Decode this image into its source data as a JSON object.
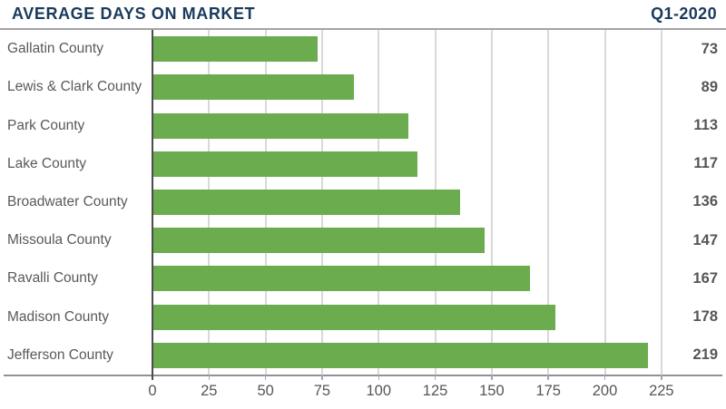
{
  "header": {
    "title": "AVERAGE DAYS ON MARKET",
    "period": "Q1-2020"
  },
  "chart_data": {
    "type": "bar",
    "orientation": "horizontal",
    "title": "AVERAGE DAYS ON MARKET",
    "period": "Q1-2020",
    "categories": [
      "Gallatin County",
      "Lewis & Clark County",
      "Park County",
      "Lake County",
      "Broadwater County",
      "Missoula County",
      "Ravalli County",
      "Madison County",
      "Jefferson County"
    ],
    "values": [
      73,
      89,
      113,
      117,
      136,
      147,
      167,
      178,
      219
    ],
    "value_labels": [
      "73",
      "89",
      "113",
      "117",
      "136",
      "147",
      "167",
      "178",
      "219"
    ],
    "x_ticks": [
      0,
      25,
      50,
      75,
      100,
      125,
      150,
      175,
      200,
      225
    ],
    "xlim": [
      0,
      249
    ],
    "xlabel": "",
    "ylabel": "",
    "legend": "none",
    "grid": "vertical-gridlines",
    "bar_color": "#6bac4e"
  },
  "colors": {
    "title_navy": "#1a3a5c",
    "bar_green": "#6bac4e",
    "label_gray": "#58595b",
    "value_gray": "#555659",
    "gridline_gray": "#d9d9da",
    "axis_gray": "#919193",
    "zero_line_dark": "#4b4c4e"
  }
}
